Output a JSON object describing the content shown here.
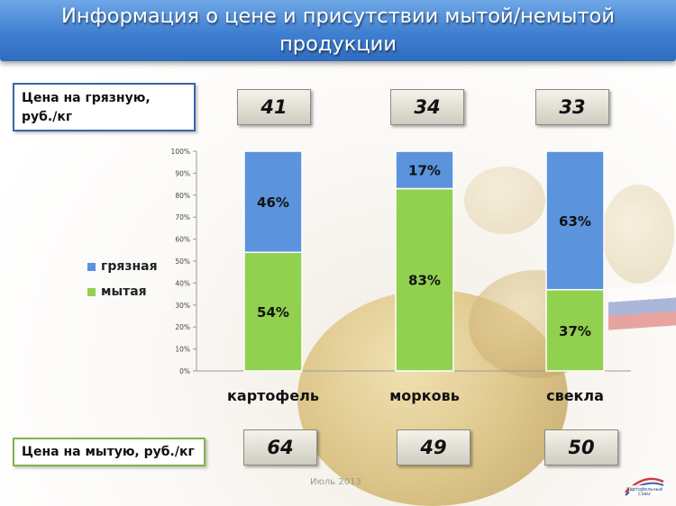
{
  "title": "Информация о цене и присутствии мытой/немытой продукции",
  "dirty_price_label": "Цена на грязную, руб./кг",
  "washed_price_label": "Цена на мытую, руб./кг",
  "dirty_prices": [
    "41",
    "34",
    "33"
  ],
  "washed_prices": [
    "64",
    "49",
    "50"
  ],
  "footer": "Июль 2013",
  "logo_text": "Картофельный Союз",
  "colors": {
    "dirty": "#5b93dd",
    "washed": "#92d050"
  },
  "chart_data": {
    "type": "bar",
    "stacked": true,
    "categories": [
      "картофель",
      "морковь",
      "свекла"
    ],
    "series": [
      {
        "name": "мытая",
        "values": [
          54,
          83,
          37
        ],
        "labels": [
          "54%",
          "83%",
          "37%"
        ]
      },
      {
        "name": "грязная",
        "values": [
          46,
          17,
          63
        ],
        "labels": [
          "46%",
          "17%",
          "63%"
        ]
      }
    ],
    "yticks": [
      "0%",
      "10%",
      "20%",
      "30%",
      "40%",
      "50%",
      "60%",
      "70%",
      "80%",
      "90%",
      "100%"
    ],
    "ylim": [
      0,
      100
    ],
    "grid": false,
    "legend": "left",
    "legend_entries": [
      "грязная",
      "мытая"
    ]
  }
}
